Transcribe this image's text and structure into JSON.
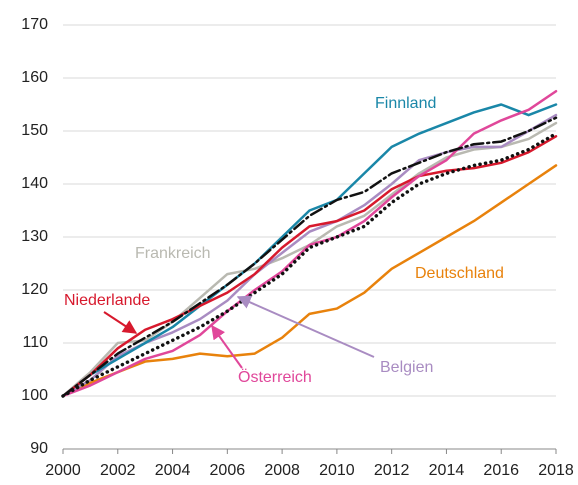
{
  "chart_data": {
    "type": "line",
    "x": [
      2000,
      2001,
      2002,
      2003,
      2004,
      2005,
      2006,
      2007,
      2008,
      2009,
      2010,
      2011,
      2012,
      2013,
      2014,
      2015,
      2016,
      2017,
      2018
    ],
    "xlim": [
      2000,
      2018
    ],
    "xticks": [
      2000,
      2002,
      2004,
      2006,
      2008,
      2010,
      2012,
      2014,
      2016,
      2018
    ],
    "ylim": [
      90,
      170
    ],
    "yticks": [
      90,
      100,
      110,
      120,
      130,
      140,
      150,
      160,
      170
    ],
    "grid": true,
    "series": [
      {
        "name": "Deutschland",
        "color": "#e8820c",
        "values": [
          100,
          102.5,
          104.5,
          106.5,
          107,
          108,
          107.5,
          108,
          111,
          115.5,
          116.5,
          119.5,
          124,
          127,
          130,
          133,
          136.5,
          140,
          143.5
        ]
      },
      {
        "name": "Frankreich",
        "color": "#b9b9b1",
        "values": [
          100,
          104.5,
          110,
          110.5,
          114,
          118.5,
          123,
          124,
          126,
          128.5,
          132,
          134,
          138,
          142,
          145,
          146.5,
          147,
          148.5,
          151.5
        ]
      },
      {
        "name": "Belgien",
        "color": "#a98cc2",
        "values": [
          100,
          103,
          107.5,
          110,
          112,
          114.5,
          118,
          123,
          127,
          131,
          133,
          136,
          140,
          144.5,
          146,
          147,
          147,
          150,
          153
        ]
      },
      {
        "name": "Finnland",
        "color": "#1a87a8",
        "values": [
          100,
          104,
          107,
          110,
          113,
          117,
          121,
          125,
          130,
          135,
          137,
          142,
          147,
          149.5,
          151.5,
          153.5,
          155,
          153,
          155
        ]
      },
      {
        "name": "Niederlande",
        "color": "#d7192d",
        "values": [
          100,
          104,
          109,
          112.5,
          114.5,
          117,
          119.5,
          123,
          128,
          132,
          133,
          135,
          139,
          141.5,
          142.5,
          143,
          144,
          146,
          149
        ]
      },
      {
        "name": "Österreich",
        "color": "#e0479a",
        "values": [
          100,
          102,
          104.5,
          107,
          108.5,
          111.5,
          116,
          120,
          123.5,
          128.5,
          130,
          133,
          137.5,
          141.5,
          144.5,
          149.5,
          152,
          154,
          157.5
        ]
      },
      {
        "color": "#111111",
        "dash": "dashdot",
        "values": [
          100,
          104,
          108,
          111,
          114,
          117.5,
          121,
          125,
          129.5,
          134,
          137,
          138.5,
          142,
          144,
          146,
          147.5,
          148,
          150,
          152.5
        ]
      },
      {
        "color": "#111111",
        "dash": "dotted",
        "values": [
          100,
          103,
          105.5,
          108,
          110.5,
          113,
          116,
          119.5,
          123,
          128,
          130,
          132,
          136.5,
          140,
          142,
          143.5,
          144.5,
          146.5,
          149.5
        ]
      }
    ]
  }
}
